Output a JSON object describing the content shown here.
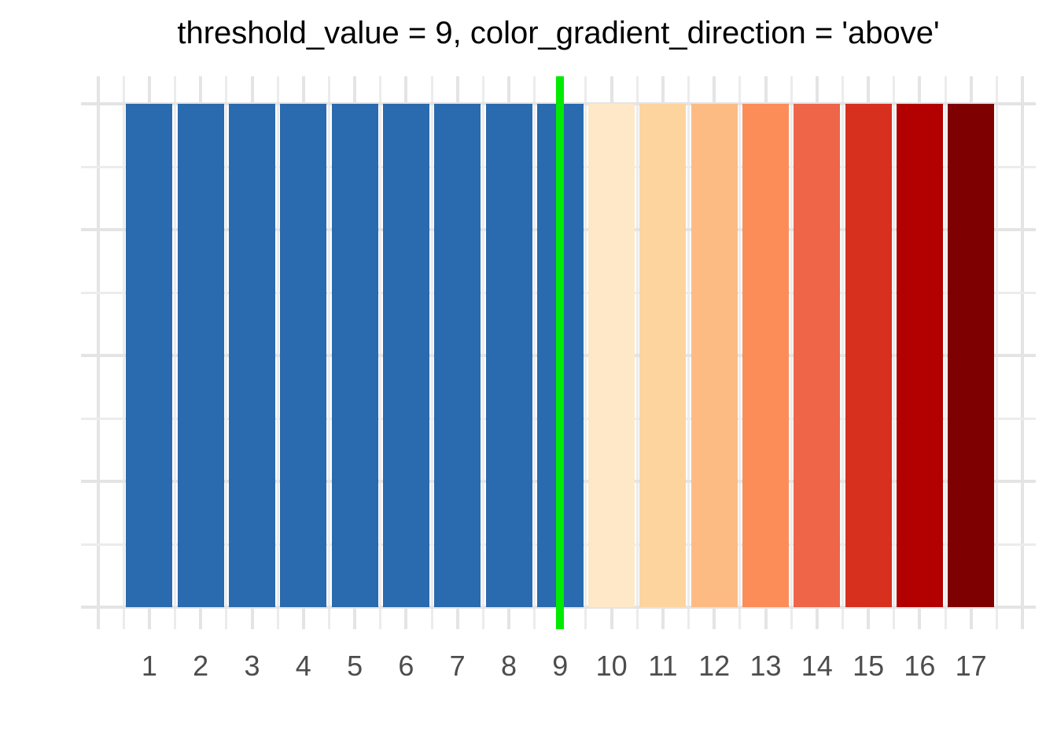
{
  "chart_data": {
    "type": "bar",
    "title": "threshold_value = 9, color_gradient_direction = 'above'",
    "categories": [
      "1",
      "2",
      "3",
      "4",
      "5",
      "6",
      "7",
      "8",
      "9",
      "10",
      "11",
      "12",
      "13",
      "14",
      "15",
      "16",
      "17"
    ],
    "values": [
      1,
      1,
      1,
      1,
      1,
      1,
      1,
      1,
      1,
      1,
      1,
      1,
      1,
      1,
      1,
      1,
      1
    ],
    "bar_colors": [
      "#2A6AAE",
      "#2A6AAE",
      "#2A6AAE",
      "#2A6AAE",
      "#2A6AAE",
      "#2A6AAE",
      "#2A6AAE",
      "#2A6AAE",
      "#2A6AAE",
      "#FEE8C8",
      "#FDD49E",
      "#FDBB84",
      "#FC8D59",
      "#EF6548",
      "#D7301F",
      "#B30000",
      "#7F0000"
    ],
    "threshold_value": 9,
    "color_gradient_direction": "above",
    "threshold_line_color": "#00EB00",
    "below_threshold_color": "#2A6AAE",
    "above_threshold_gradient": [
      "#FEE8C8",
      "#FDD49E",
      "#FDBB84",
      "#FC8D59",
      "#EF6548",
      "#D7301F",
      "#B30000",
      "#7F0000"
    ],
    "xlabel": "",
    "ylabel": "",
    "xlim": [
      -0.33,
      18.26
    ],
    "ylim": [
      0,
      1.05
    ],
    "grid": "on",
    "legend": "none",
    "axis_text_color": "#4D4D4D",
    "grid_major_color": "#E4E4E4",
    "grid_minor_color": "#ECECEC",
    "background_color": "#FFFFFF"
  }
}
